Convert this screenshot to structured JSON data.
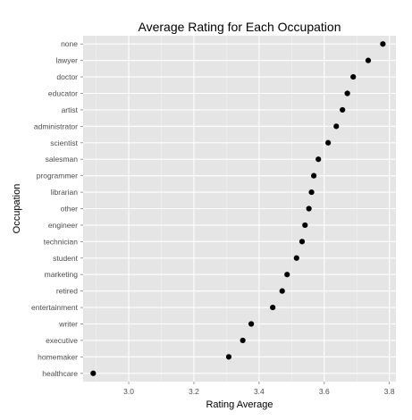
{
  "chart_data": {
    "type": "scatter",
    "title": "Average Rating for Each Occupation",
    "xlabel": "Rating Average",
    "ylabel": "Occupation",
    "xlim": [
      2.86,
      3.82
    ],
    "xticks": [
      3.0,
      3.2,
      3.4,
      3.6,
      3.8
    ],
    "xtick_labels": [
      "3.0",
      "3.2",
      "3.4",
      "3.6",
      "3.8"
    ],
    "grid": true,
    "panel_background": "#e5e5e5",
    "grid_color": "#ffffff",
    "point_color": "#000000",
    "categories": [
      "none",
      "lawyer",
      "doctor",
      "educator",
      "artist",
      "administrator",
      "scientist",
      "salesman",
      "programmer",
      "librarian",
      "other",
      "engineer",
      "technician",
      "student",
      "marketing",
      "retired",
      "entertainment",
      "writer",
      "executive",
      "homemaker",
      "healthcare"
    ],
    "values": [
      3.78,
      3.735,
      3.689,
      3.671,
      3.656,
      3.637,
      3.612,
      3.582,
      3.568,
      3.561,
      3.553,
      3.541,
      3.532,
      3.515,
      3.486,
      3.471,
      3.442,
      3.376,
      3.35,
      3.307,
      2.891
    ]
  }
}
